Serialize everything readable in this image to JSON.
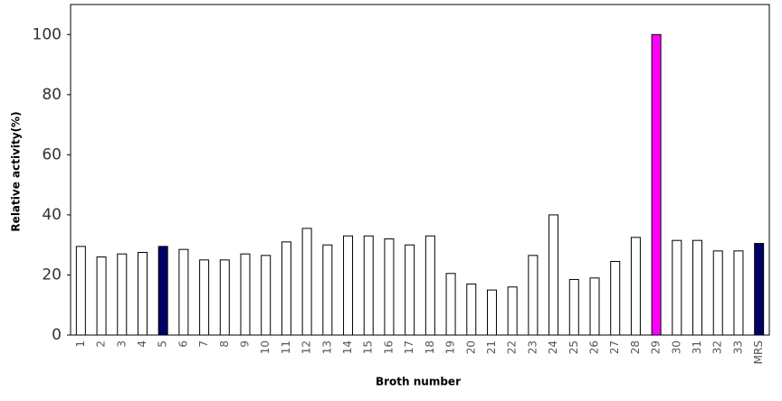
{
  "chart_data": {
    "type": "bar",
    "x_label": "Broth number",
    "y_label": "Relative activity(%)",
    "categories": [
      "1",
      "2",
      "3",
      "4",
      "5",
      "6",
      "7",
      "8",
      "9",
      "10",
      "11",
      "12",
      "13",
      "14",
      "15",
      "16",
      "17",
      "18",
      "19",
      "20",
      "21",
      "22",
      "23",
      "24",
      "25",
      "26",
      "27",
      "28",
      "29",
      "30",
      "31",
      "32",
      "33",
      "MRS"
    ],
    "values": [
      29.5,
      26,
      27,
      27.5,
      29.5,
      28.5,
      25,
      25,
      27,
      26.5,
      31,
      35.5,
      30,
      33,
      33,
      32,
      30,
      33,
      20.5,
      17,
      15,
      16,
      26.5,
      40,
      18.5,
      19,
      24.5,
      32.5,
      100,
      31.5,
      31.5,
      28,
      28,
      30.5
    ],
    "colors": [
      "#ffffff",
      "#ffffff",
      "#ffffff",
      "#ffffff",
      "#000066",
      "#ffffff",
      "#ffffff",
      "#ffffff",
      "#ffffff",
      "#ffffff",
      "#ffffff",
      "#ffffff",
      "#ffffff",
      "#ffffff",
      "#ffffff",
      "#ffffff",
      "#ffffff",
      "#ffffff",
      "#ffffff",
      "#ffffff",
      "#ffffff",
      "#ffffff",
      "#ffffff",
      "#ffffff",
      "#ffffff",
      "#ffffff",
      "#ffffff",
      "#ffffff",
      "#ff00ff",
      "#ffffff",
      "#ffffff",
      "#ffffff",
      "#ffffff",
      "#000066"
    ],
    "ylim": [
      0,
      110
    ],
    "yticks": [
      0,
      20,
      40,
      60,
      80,
      100
    ],
    "grid": false
  }
}
